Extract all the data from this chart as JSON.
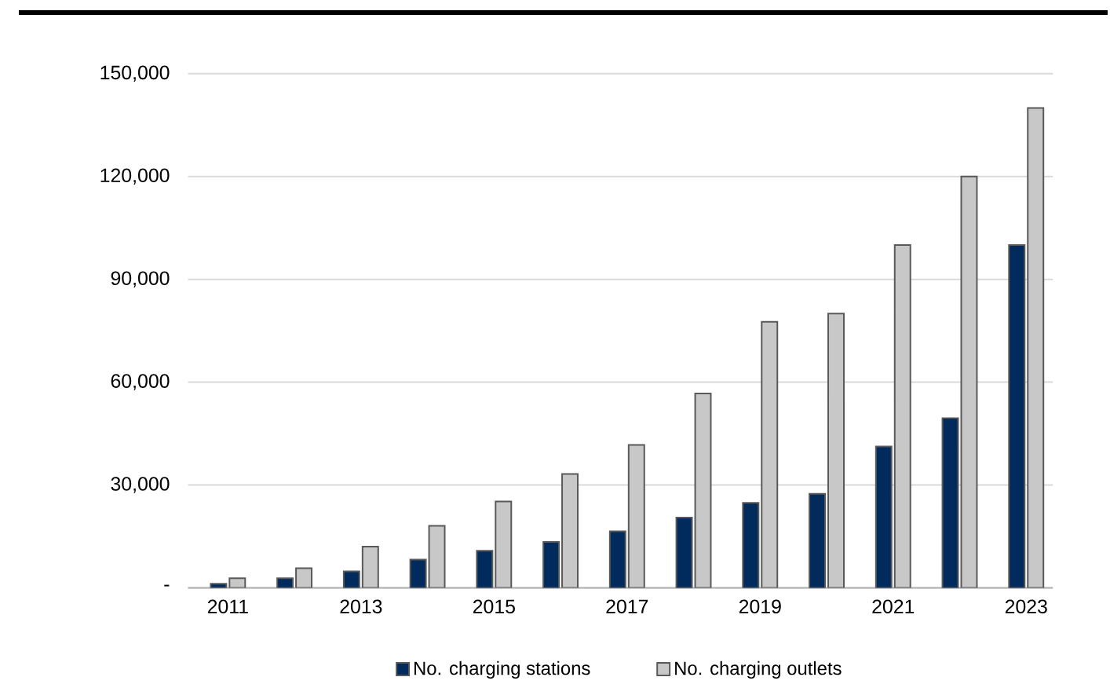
{
  "chart_data": {
    "type": "bar",
    "categories": [
      "2011",
      null,
      "2013",
      null,
      "2015",
      null,
      "2017",
      null,
      "2019",
      null,
      "2021",
      null,
      "2023"
    ],
    "series": [
      {
        "name": "No. charging stations",
        "color": "#002b5c",
        "values": [
          1200,
          2800,
          4800,
          8200,
          10800,
          13400,
          16500,
          20500,
          24800,
          27400,
          41200,
          49500,
          100000
        ]
      },
      {
        "name": "No. charging outlets",
        "color": "#c8c8c8",
        "values": [
          2800,
          5700,
          12000,
          18100,
          25200,
          33200,
          41700,
          56700,
          77600,
          80000,
          100000,
          120000,
          140000
        ]
      }
    ],
    "ylim": [
      0,
      150000
    ],
    "yticks": [
      {
        "value": 0,
        "label": "-"
      },
      {
        "value": 30000,
        "label": "30,000"
      },
      {
        "value": 60000,
        "label": "60,000"
      },
      {
        "value": 90000,
        "label": "90,000"
      },
      {
        "value": 120000,
        "label": "120,000"
      },
      {
        "value": 150000,
        "label": "150,000"
      }
    ],
    "grid": "y",
    "legend": "bottom"
  }
}
